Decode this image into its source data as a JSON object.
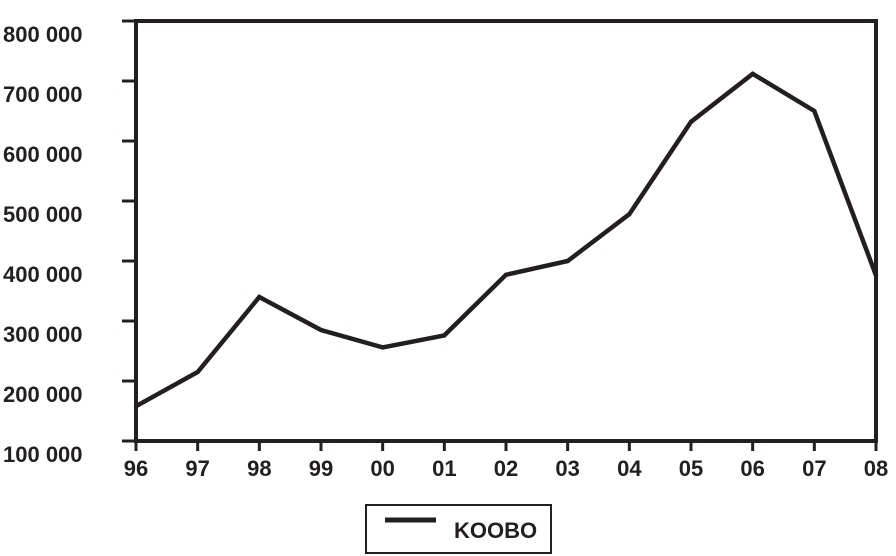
{
  "chart_data": {
    "type": "line",
    "title": "",
    "xlabel": "",
    "ylabel": "",
    "x": [
      "96",
      "97",
      "98",
      "99",
      "00",
      "01",
      "02",
      "03",
      "04",
      "05",
      "06",
      "07",
      "08"
    ],
    "series": [
      {
        "name": "KOOBO",
        "values": [
          158000,
          215000,
          340000,
          285000,
          256000,
          276000,
          377000,
          400000,
          478000,
          632000,
          712000,
          650000,
          376000
        ]
      }
    ],
    "ylim": [
      100000,
      800000
    ],
    "yticks": [
      100000,
      200000,
      300000,
      400000,
      500000,
      600000,
      700000,
      800000
    ],
    "ytick_labels": [
      "100 000",
      "200 000",
      "300 000",
      "400 000",
      "500 000",
      "600 000",
      "700 000",
      "800 000"
    ],
    "grid": false,
    "legend_position": "bottom-center",
    "line_color": "#231f20"
  }
}
